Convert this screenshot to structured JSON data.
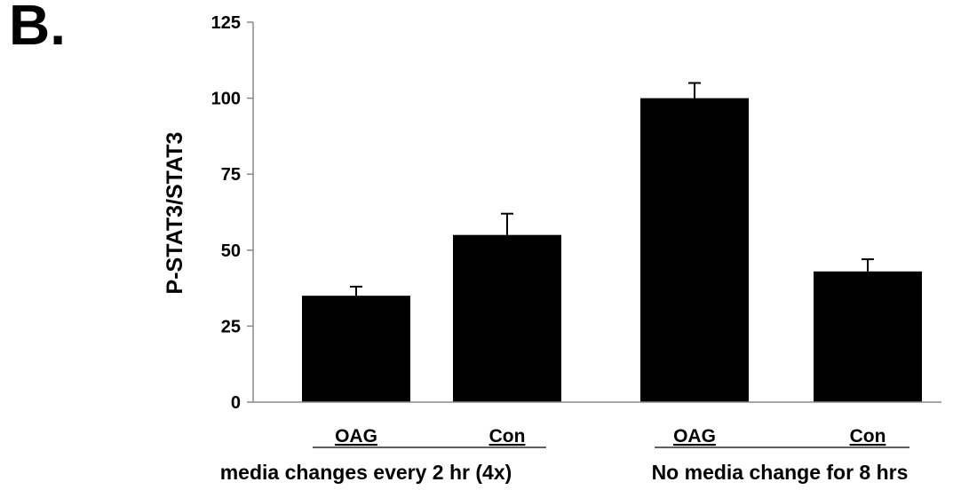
{
  "panel_label": "B.",
  "chart_data": {
    "type": "bar",
    "title": "",
    "ylabel": "P-STAT3/STAT3",
    "xlabel": "",
    "ylim": [
      0,
      125
    ],
    "yticks": [
      0,
      25,
      50,
      75,
      100,
      125
    ],
    "grid": false,
    "categories": [
      "OAG",
      "Con",
      "OAG",
      "Con"
    ],
    "values": [
      35,
      55,
      100,
      43
    ],
    "errors": [
      3,
      7,
      5,
      4
    ],
    "groups": [
      {
        "label": "media changes every 2 hr (4x)",
        "members": [
          0,
          1
        ]
      },
      {
        "label": "No media change for 8 hrs",
        "members": [
          2,
          3
        ]
      }
    ],
    "bar_color": "#000000"
  }
}
